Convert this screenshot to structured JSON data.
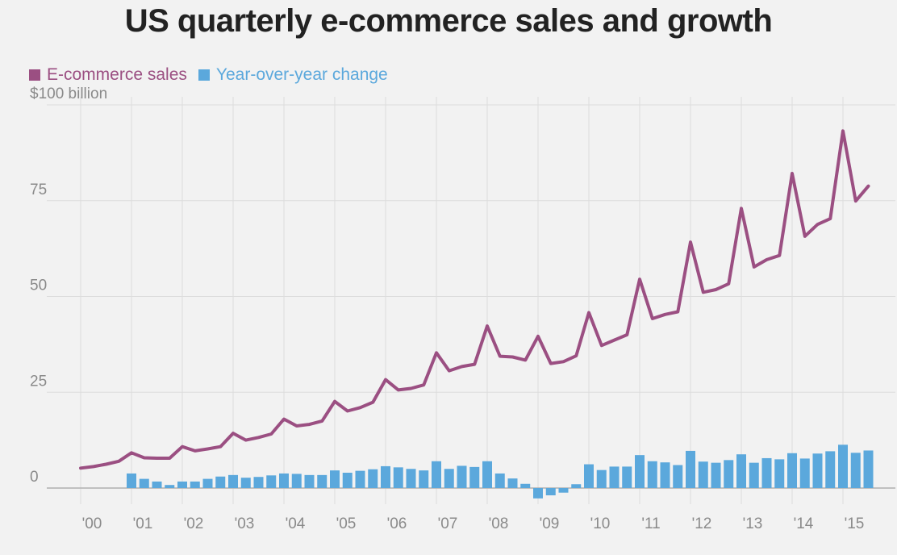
{
  "title": "US quarterly e-commerce sales and growth",
  "colors": {
    "sales": "#9b4f82",
    "growth": "#5ba8dc",
    "grid": "#dcdcdc",
    "zero": "#b0b0b0",
    "text": "#8a8a8a"
  },
  "legend": [
    {
      "label": "E-commerce sales",
      "color": "#9b4f82"
    },
    {
      "label": "Year-over-year change",
      "color": "#5ba8dc"
    }
  ],
  "chart_data": {
    "type": "line+bar",
    "title": "US quarterly e-commerce sales and growth",
    "ylim": [
      0,
      100
    ],
    "y_ticks": [
      {
        "value": 100,
        "label": "$100 billion"
      },
      {
        "value": 75,
        "label": "75"
      },
      {
        "value": 50,
        "label": "50"
      },
      {
        "value": 25,
        "label": "25"
      },
      {
        "value": 0,
        "label": "0"
      }
    ],
    "x_ticks": [
      "'00",
      "'01",
      "'02",
      "'03",
      "'04",
      "'05",
      "'06",
      "'07",
      "'08",
      "'09",
      "'10",
      "'11",
      "'12",
      "'13",
      "'14",
      "'15"
    ],
    "grid": true,
    "legend_position": "top-left",
    "series": [
      {
        "name": "E-commerce sales",
        "type": "line",
        "values": [
          5.2,
          5.6,
          6.2,
          7.0,
          9.2,
          7.9,
          7.8,
          7.8,
          10.8,
          9.7,
          10.2,
          10.8,
          14.3,
          12.5,
          13.2,
          14.1,
          18.0,
          16.2,
          16.6,
          17.5,
          22.6,
          20.1,
          21.0,
          22.4,
          28.3,
          25.6,
          26.0,
          26.9,
          35.3,
          30.6,
          31.7,
          32.3,
          42.3,
          34.4,
          34.2,
          33.4,
          39.6,
          32.5,
          33.0,
          34.5,
          45.8,
          37.2,
          38.6,
          40.0,
          54.5,
          44.2,
          45.3,
          46.0,
          64.2,
          51.1,
          51.8,
          53.3,
          73.0,
          57.7,
          59.6,
          60.7,
          82.1,
          65.7,
          68.8,
          70.3,
          93.2,
          74.9,
          78.8
        ]
      },
      {
        "name": "Year-over-year change",
        "type": "bar",
        "values": [
          null,
          null,
          null,
          null,
          3.8,
          2.4,
          1.7,
          0.8,
          1.7,
          1.7,
          2.4,
          3.0,
          3.4,
          2.7,
          2.9,
          3.3,
          3.8,
          3.7,
          3.4,
          3.4,
          4.6,
          4.0,
          4.5,
          4.9,
          5.7,
          5.4,
          5.0,
          4.6,
          7.0,
          5.0,
          5.8,
          5.5,
          7.0,
          3.8,
          2.5,
          1.1,
          -2.7,
          -1.9,
          -1.2,
          1.0,
          6.2,
          4.7,
          5.6,
          5.6,
          8.6,
          7.0,
          6.7,
          6.0,
          9.7,
          6.9,
          6.6,
          7.3,
          8.8,
          6.6,
          7.8,
          7.5,
          9.1,
          7.7,
          9.0,
          9.6,
          11.3,
          9.2,
          9.8
        ]
      }
    ]
  }
}
